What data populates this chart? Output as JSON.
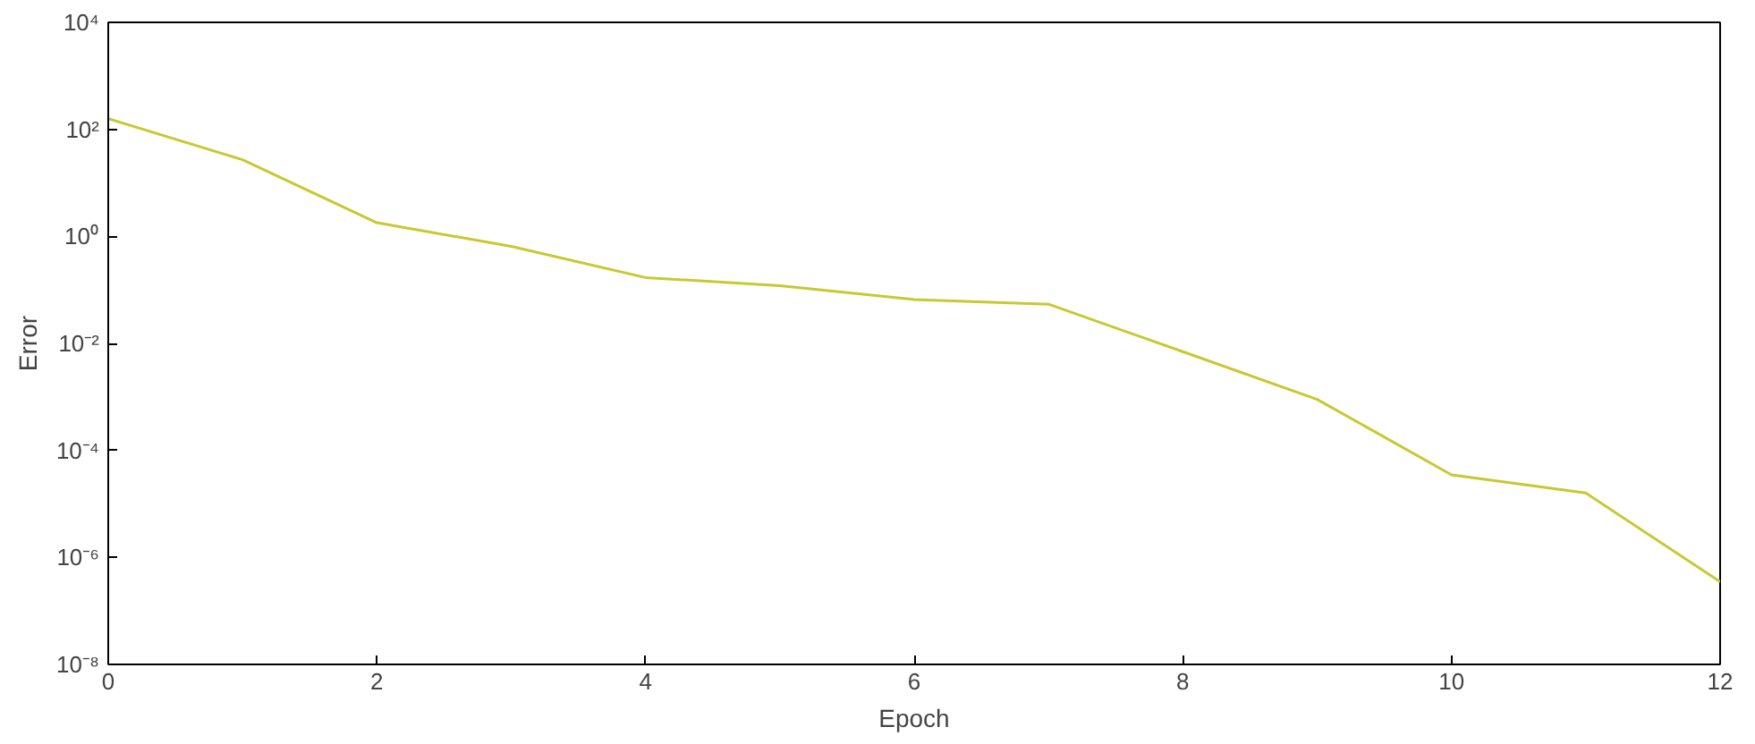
{
  "chart_data": {
    "type": "line",
    "xlabel": "Epoch",
    "ylabel": "Error",
    "log": "y",
    "x": [
      0,
      1,
      2,
      3,
      4,
      5,
      6,
      7,
      8,
      9,
      10,
      11,
      12
    ],
    "series": [
      {
        "color": "#c8c832",
        "values": [
          158,
          27,
          1.8,
          0.65,
          0.17,
          0.12,
          0.066,
          0.054,
          0.007,
          0.0009,
          3.5e-05,
          1.6e-05,
          3.5e-07
        ]
      }
    ],
    "xlim": [
      0,
      12
    ],
    "xticks": [
      0,
      2,
      4,
      6,
      8,
      10,
      12
    ],
    "ylim": [
      1e-08,
      10000
    ],
    "yticks": [
      {
        "value": 1e-08,
        "label": "10⁻⁸"
      },
      {
        "value": 1e-06,
        "label": "10⁻⁶"
      },
      {
        "value": 0.0001,
        "label": "10⁻⁴"
      },
      {
        "value": 0.01,
        "label": "10⁻²"
      },
      {
        "value": 1,
        "label": "10⁰"
      },
      {
        "value": 100,
        "label": "10²"
      },
      {
        "value": 10000,
        "label": "10⁴"
      }
    ],
    "grid": false,
    "marker": "none",
    "line_style": "solid"
  }
}
